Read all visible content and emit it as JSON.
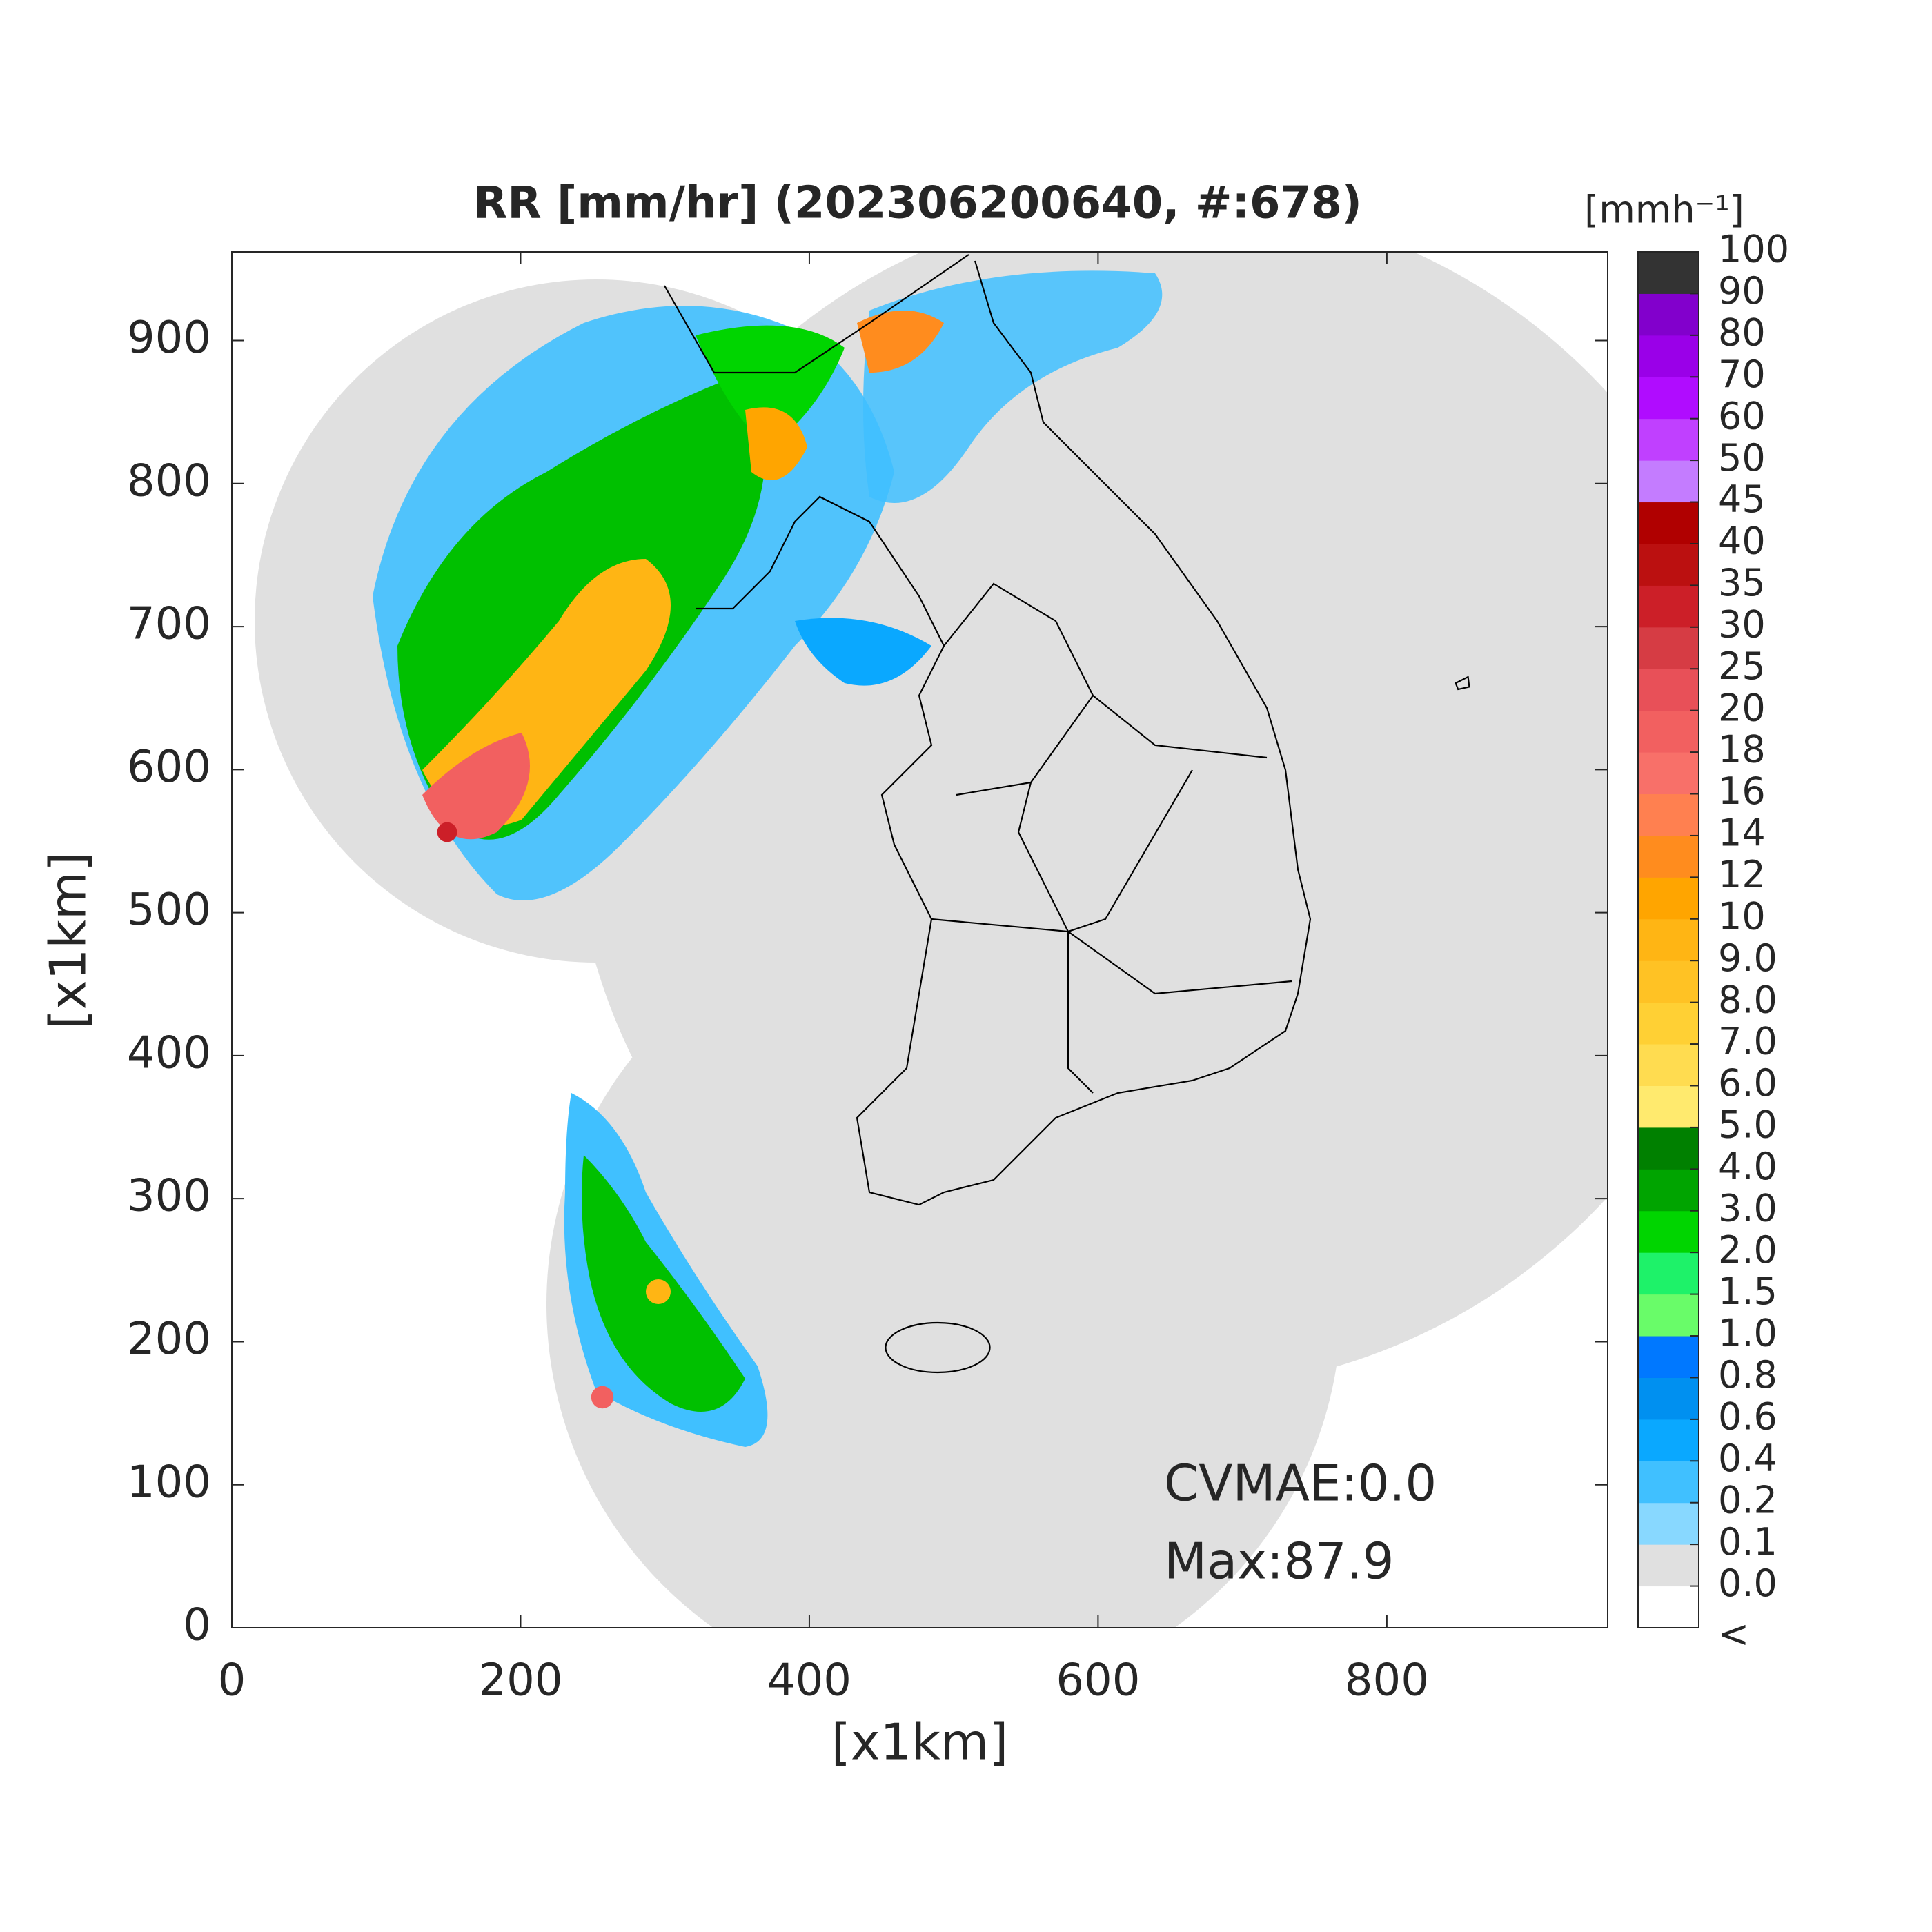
{
  "chart_data": {
    "type": "map",
    "title": "RR [mm/hr] (202306200640, #:678)",
    "xlabel": "[x1km]",
    "ylabel": "[x1km]",
    "xlim": [
      0,
      953
    ],
    "ylim": [
      0,
      962
    ],
    "xticks": [
      0,
      200,
      400,
      600,
      800
    ],
    "yticks": [
      0,
      100,
      200,
      300,
      400,
      500,
      600,
      700,
      800,
      900
    ],
    "annotations": [
      "CVMAE:0.0",
      "Max:87.9"
    ],
    "colorbar": {
      "title": "[mmh⁻¹]",
      "below_label": "<",
      "levels": [
        {
          "value": 0,
          "label": "0.0"
        },
        0.1,
        0.2,
        0.4,
        0.6,
        0.8,
        {
          "value": 1,
          "label": "1.0"
        },
        1.5,
        {
          "value": 2,
          "label": "2.0"
        },
        {
          "value": 3,
          "label": "3.0"
        },
        {
          "value": 4,
          "label": "4.0"
        },
        {
          "value": 5,
          "label": "5.0"
        },
        {
          "value": 6,
          "label": "6.0"
        },
        {
          "value": 7,
          "label": "7.0"
        },
        {
          "value": 8,
          "label": "8.0"
        },
        {
          "value": 9,
          "label": "9.0"
        },
        10,
        12,
        14,
        16,
        18,
        20,
        25,
        30,
        35,
        40,
        45,
        50,
        60,
        70,
        80,
        90,
        100
      ],
      "colors": [
        "#ffffff",
        "#e0e0e0",
        "#88d8ff",
        "#40c0ff",
        "#0aa8ff",
        "#0090f0",
        "#0078ff",
        "#69fc69",
        "#1ef269",
        "#00d500",
        "#00a400",
        "#008000",
        "#ffea6e",
        "#ffdc50",
        "#ffd034",
        "#ffc224",
        "#ffb514",
        "#ffa500",
        "#ff8c1e",
        "#ff8050",
        "#f87069",
        "#f26060",
        "#e85058",
        "#d63c44",
        "#cc1f28",
        "#bb1010",
        "#b00000",
        "#c47cff",
        "#c040ff",
        "#b00cff",
        "#9a00e8",
        "#8200cc",
        "#333333"
      ]
    }
  }
}
